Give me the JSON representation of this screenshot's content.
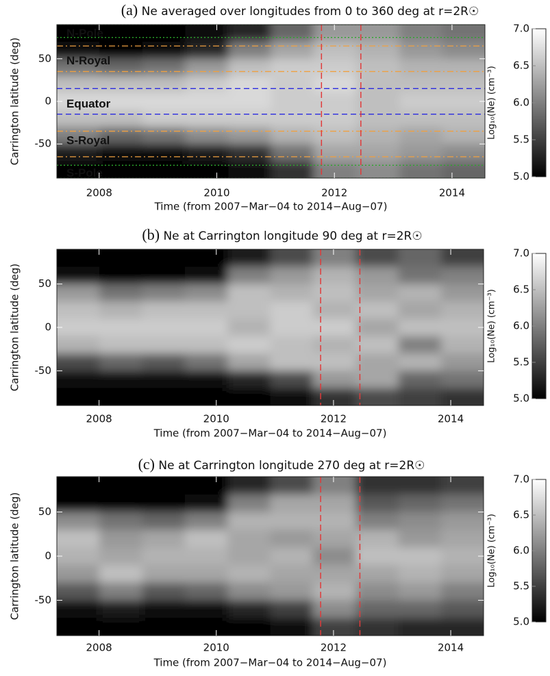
{
  "chart_data": [
    {
      "type": "heatmap",
      "panel_label": "(a)",
      "title": "Ne averaged over longitudes from 0 to 360 deg at r=2R☉",
      "xlabel": "Time (from 2007−Mar−04 to 2014−Aug−07)",
      "ylabel": "Carrington latitude (deg)",
      "x": [
        2007.64,
        2008.37,
        2009.1,
        2009.83,
        2010.56,
        2011.28,
        2012.01,
        2012.74,
        2013.47,
        2014.2
      ],
      "y": [
        80,
        60,
        40,
        20,
        0,
        -20,
        -40,
        -60,
        -80
      ],
      "z": [
        [
          5.0,
          5.0,
          5.0,
          5.1,
          5.3,
          5.8,
          6.2,
          6.2,
          6.0,
          5.9
        ],
        [
          5.1,
          5.0,
          5.1,
          5.3,
          6.0,
          6.3,
          6.5,
          6.4,
          6.2,
          6.1
        ],
        [
          5.9,
          5.8,
          5.9,
          6.2,
          6.5,
          6.6,
          6.6,
          6.5,
          6.4,
          6.4
        ],
        [
          6.5,
          6.5,
          6.5,
          6.6,
          6.7,
          6.6,
          6.7,
          6.5,
          6.5,
          6.5
        ],
        [
          6.7,
          6.7,
          6.7,
          6.7,
          6.7,
          6.6,
          6.6,
          6.5,
          6.6,
          6.6
        ],
        [
          6.5,
          6.5,
          6.6,
          6.6,
          6.6,
          6.6,
          6.6,
          6.5,
          6.5,
          6.5
        ],
        [
          6.0,
          5.8,
          5.9,
          6.1,
          6.2,
          6.4,
          6.5,
          6.4,
          6.3,
          6.4
        ],
        [
          5.2,
          5.1,
          5.1,
          5.2,
          5.4,
          5.9,
          6.3,
          6.3,
          6.2,
          6.1
        ],
        [
          5.0,
          5.0,
          5.0,
          5.0,
          5.1,
          5.4,
          6.0,
          6.1,
          5.9,
          5.8
        ]
      ],
      "xlim": [
        2007.28,
        2014.56
      ],
      "ylim": [
        -90,
        90
      ],
      "xticks": [
        2008,
        2010,
        2012,
        2014
      ],
      "yticks": [
        -50,
        0,
        50
      ],
      "colorbar": {
        "label": "Log₁₀(Ne) (cm⁻³)",
        "clim": [
          5,
          7
        ],
        "ticks": [
          {
            "value": 5,
            "label": "5.0"
          },
          {
            "value": 5.5,
            "label": "5.5"
          },
          {
            "value": 6,
            "label": "6.0"
          },
          {
            "value": 6.5,
            "label": "6.5"
          },
          {
            "value": 7,
            "label": "7.0"
          }
        ]
      },
      "vlines": [
        {
          "value": 2011.78,
          "color": "#e03a3a"
        },
        {
          "value": 2012.45,
          "color": "#e03a3a"
        }
      ],
      "hlines": [
        {
          "value": 90,
          "color": "#2aa82a",
          "style": "dotted"
        },
        {
          "value": 75,
          "color": "#2aa82a",
          "style": "dotted"
        },
        {
          "value": 65,
          "color": "#f0a040",
          "style": "dashdot"
        },
        {
          "value": 35,
          "color": "#f0a040",
          "style": "dashdot"
        },
        {
          "value": 15,
          "color": "#2a2ae0",
          "style": "dashed"
        },
        {
          "value": -15,
          "color": "#2a2ae0",
          "style": "dashed"
        },
        {
          "value": -35,
          "color": "#f0a040",
          "style": "dashdot"
        },
        {
          "value": -65,
          "color": "#f0a040",
          "style": "dashdot"
        },
        {
          "value": -75,
          "color": "#2aa82a",
          "style": "dotted"
        },
        {
          "value": -90,
          "color": "#2aa82a",
          "style": "dotted"
        }
      ],
      "annotations": [
        {
          "text": "N-Pole",
          "color": "#2aa82a"
        },
        {
          "text": "N-Royal",
          "color": "#cc2222"
        },
        {
          "text": "Equator",
          "color": "#2a2ae0"
        },
        {
          "text": "S-Royal",
          "color": "#cc2222"
        },
        {
          "text": "S-Pole",
          "color": "#2aa82a"
        }
      ]
    },
    {
      "type": "heatmap",
      "panel_label": "(b)",
      "title": "Ne at Carrington longitude 90 deg at r=2R☉",
      "xlabel": "Time (from 2007−Mar−04 to 2014−Aug−07)",
      "ylabel": "Carrington latitude (deg)",
      "x": [
        2007.64,
        2008.37,
        2009.1,
        2009.83,
        2010.56,
        2011.28,
        2012.01,
        2012.74,
        2013.47,
        2014.2
      ],
      "y": [
        80,
        60,
        40,
        20,
        0,
        -20,
        -40,
        -60,
        -80
      ],
      "z": [
        [
          5.0,
          5.0,
          5.0,
          5.0,
          5.2,
          5.6,
          6.0,
          5.6,
          5.8,
          5.5
        ],
        [
          5.1,
          5.0,
          5.0,
          5.1,
          6.0,
          6.2,
          6.4,
          6.2,
          5.9,
          6.0
        ],
        [
          6.2,
          5.9,
          6.0,
          6.1,
          6.5,
          6.4,
          6.5,
          6.3,
          6.4,
          6.2
        ],
        [
          6.5,
          6.4,
          6.5,
          6.5,
          6.5,
          6.6,
          6.4,
          6.5,
          6.3,
          6.4
        ],
        [
          6.6,
          6.6,
          6.6,
          6.6,
          6.4,
          6.6,
          6.6,
          6.3,
          6.5,
          6.5
        ],
        [
          6.4,
          6.5,
          6.5,
          6.5,
          6.6,
          6.5,
          6.4,
          6.5,
          6.0,
          6.4
        ],
        [
          5.6,
          5.8,
          5.7,
          5.9,
          6.3,
          6.5,
          6.5,
          6.3,
          6.4,
          6.2
        ],
        [
          5.1,
          5.1,
          5.1,
          5.1,
          5.3,
          5.6,
          6.2,
          6.3,
          5.8,
          5.9
        ],
        [
          5.0,
          5.0,
          5.0,
          5.0,
          5.0,
          5.1,
          5.4,
          5.6,
          5.5,
          5.4
        ]
      ],
      "xlim": [
        2007.28,
        2014.56
      ],
      "ylim": [
        -90,
        90
      ],
      "xticks": [
        2008,
        2010,
        2012,
        2014
      ],
      "yticks": [
        -50,
        0,
        50
      ],
      "colorbar": {
        "label": "Log₁₀(Ne) (cm⁻³)",
        "clim": [
          5,
          7
        ],
        "ticks": [
          {
            "value": 5,
            "label": "5.0"
          },
          {
            "value": 5.5,
            "label": "5.5"
          },
          {
            "value": 6,
            "label": "6.0"
          },
          {
            "value": 6.5,
            "label": "6.5"
          },
          {
            "value": 7,
            "label": "7.0"
          }
        ]
      },
      "vlines": [
        {
          "value": 2011.78,
          "color": "#e03a3a"
        },
        {
          "value": 2012.45,
          "color": "#e03a3a"
        }
      ]
    },
    {
      "type": "heatmap",
      "panel_label": "(c)",
      "title": "Ne at Carrington longitude 270 deg at r=2R☉",
      "xlabel": "Time (from 2007−Mar−04 to 2014−Aug−07)",
      "ylabel": "Carrington latitude (deg)",
      "x": [
        2007.64,
        2008.37,
        2009.1,
        2009.83,
        2010.56,
        2011.28,
        2012.01,
        2012.74,
        2013.47,
        2014.2
      ],
      "y": [
        80,
        60,
        40,
        20,
        0,
        -20,
        -40,
        -60,
        -80
      ],
      "z": [
        [
          5.0,
          5.0,
          5.0,
          5.0,
          5.3,
          5.6,
          6.0,
          5.4,
          5.4,
          5.5
        ],
        [
          5.0,
          5.0,
          5.0,
          5.1,
          6.0,
          6.3,
          6.3,
          5.7,
          5.8,
          5.9
        ],
        [
          6.1,
          5.9,
          5.8,
          6.0,
          6.4,
          6.4,
          6.4,
          6.0,
          6.1,
          6.2
        ],
        [
          6.5,
          6.2,
          6.3,
          6.5,
          6.3,
          6.2,
          6.3,
          6.4,
          6.2,
          6.3
        ],
        [
          6.4,
          6.3,
          6.4,
          6.4,
          6.3,
          6.4,
          6.1,
          6.5,
          6.5,
          6.4
        ],
        [
          6.2,
          6.5,
          6.3,
          6.3,
          6.4,
          6.3,
          6.3,
          6.3,
          6.4,
          6.3
        ],
        [
          5.7,
          6.0,
          5.7,
          5.8,
          6.1,
          6.2,
          6.4,
          6.1,
          6.2,
          6.0
        ],
        [
          5.1,
          5.2,
          5.1,
          5.1,
          5.3,
          5.5,
          6.1,
          5.8,
          5.8,
          5.7
        ],
        [
          5.0,
          5.0,
          5.0,
          5.0,
          5.0,
          5.1,
          5.5,
          5.4,
          5.3,
          5.3
        ]
      ],
      "xlim": [
        2007.28,
        2014.56
      ],
      "ylim": [
        -90,
        90
      ],
      "xticks": [
        2008,
        2010,
        2012,
        2014
      ],
      "yticks": [
        -50,
        0,
        50
      ],
      "colorbar": {
        "label": "Log₁₀(Ne) (cm⁻³)",
        "clim": [
          5,
          7
        ],
        "ticks": [
          {
            "value": 5,
            "label": "5.0"
          },
          {
            "value": 5.5,
            "label": "5.5"
          },
          {
            "value": 6,
            "label": "6.0"
          },
          {
            "value": 6.5,
            "label": "6.5"
          },
          {
            "value": 7,
            "label": "7.0"
          }
        ]
      },
      "vlines": [
        {
          "value": 2011.78,
          "color": "#e03a3a"
        },
        {
          "value": 2012.45,
          "color": "#e03a3a"
        }
      ]
    }
  ]
}
